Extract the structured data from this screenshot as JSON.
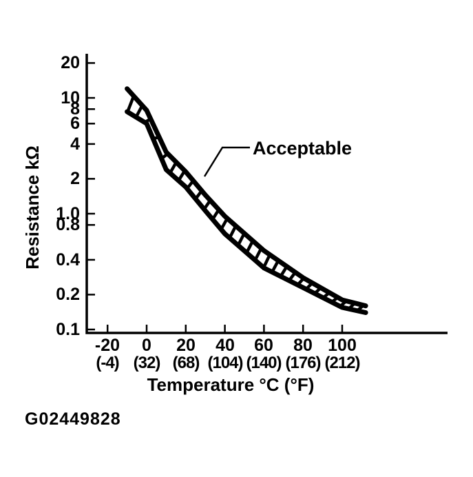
{
  "page": {
    "background": "#ffffff",
    "ink": "#000000"
  },
  "figure_code": "G02449828",
  "chart_data": {
    "type": "area",
    "title": "",
    "ylabel": "Resistance kΩ",
    "xlabel": "Temperature °C (°F)",
    "y_scale": "log",
    "ylim": [
      0.1,
      20
    ],
    "xlim": [
      -20,
      100
    ],
    "grid": false,
    "legend": false,
    "annotation": {
      "label": "Acceptable",
      "points_to": "hatched band between upper and lower limit curves"
    },
    "y_ticks": [
      "20",
      "10",
      "8",
      "6",
      "4",
      "2",
      "1.0",
      "0.8",
      "0.4",
      "0.2",
      "0.1"
    ],
    "x_ticks": [
      {
        "celsius": "-20",
        "fahrenheit": "(-4)"
      },
      {
        "celsius": "0",
        "fahrenheit": "(32)"
      },
      {
        "celsius": "20",
        "fahrenheit": "(68)"
      },
      {
        "celsius": "40",
        "fahrenheit": "(104)"
      },
      {
        "celsius": "60",
        "fahrenheit": "(140)"
      },
      {
        "celsius": "80",
        "fahrenheit": "(176)"
      },
      {
        "celsius": "100",
        "fahrenheit": "(212)"
      }
    ],
    "x_temps_c": [
      -10,
      0,
      10,
      20,
      30,
      40,
      60,
      80,
      100,
      112
    ],
    "series": [
      {
        "name": "acceptable-upper-limit-kohm",
        "values": [
          12,
          7.8,
          3.4,
          2.3,
          1.45,
          0.95,
          0.48,
          0.28,
          0.18,
          0.16
        ]
      },
      {
        "name": "acceptable-lower-limit-kohm",
        "values": [
          7.6,
          6.0,
          2.4,
          1.7,
          1.06,
          0.67,
          0.34,
          0.23,
          0.155,
          0.14
        ]
      }
    ],
    "band_style": "hatched"
  }
}
